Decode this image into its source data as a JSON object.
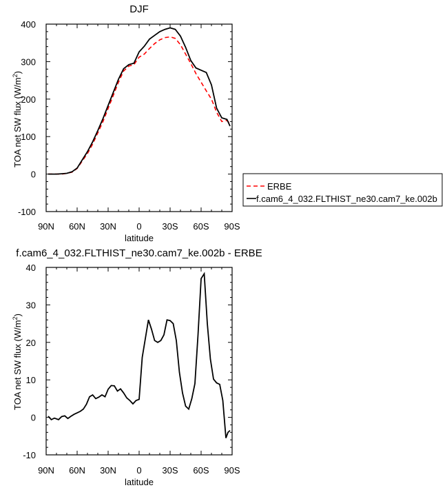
{
  "chart_data": [
    {
      "type": "line",
      "title": "DJF",
      "xlabel": "latitude",
      "ylabel": "TOA net SW flux (W/m",
      "ylabel_superscript": "2",
      "ylabel_close": ")",
      "x_tick_labels": [
        "90N",
        "60N",
        "30N",
        "0",
        "30S",
        "60S",
        "90S"
      ],
      "x_tick_values": [
        -90,
        -60,
        -30,
        0,
        30,
        60,
        90
      ],
      "xlim": [
        -90,
        90
      ],
      "y_tick_labels": [
        "-100",
        "0",
        "100",
        "200",
        "300",
        "400"
      ],
      "y_tick_values": [
        -100,
        0,
        100,
        200,
        300,
        400
      ],
      "ylim": [
        -100,
        400
      ],
      "grid": false,
      "legend_placement": "right",
      "series": [
        {
          "name": "ERBE",
          "color": "#ff0000",
          "dash": true,
          "x": [
            -88,
            -85,
            -80,
            -75,
            -70,
            -65,
            -60,
            -55,
            -50,
            -45,
            -40,
            -35,
            -30,
            -25,
            -20,
            -15,
            -10,
            -5,
            0,
            5,
            10,
            15,
            20,
            25,
            30,
            35,
            40,
            45,
            50,
            55,
            60,
            65,
            70,
            75,
            80,
            85,
            88
          ],
          "values": [
            0,
            0,
            0,
            0,
            2,
            5,
            15,
            35,
            55,
            80,
            110,
            140,
            175,
            210,
            245,
            275,
            288,
            292,
            312,
            320,
            335,
            348,
            358,
            364,
            366,
            362,
            345,
            320,
            295,
            268,
            245,
            222,
            200,
            165,
            140,
            143,
            135
          ]
        },
        {
          "name": "f.cam6_4_032.FLTHIST_ne30.cam7_ke.002b",
          "color": "#000000",
          "dash": false,
          "x": [
            -88,
            -85,
            -80,
            -75,
            -70,
            -65,
            -60,
            -55,
            -50,
            -45,
            -40,
            -35,
            -30,
            -25,
            -20,
            -15,
            -10,
            -5,
            0,
            5,
            10,
            15,
            20,
            25,
            30,
            35,
            40,
            45,
            50,
            55,
            60,
            65,
            70,
            75,
            80,
            85,
            88
          ],
          "values": [
            0,
            0,
            0,
            1,
            2,
            6,
            16,
            38,
            60,
            86,
            116,
            148,
            183,
            218,
            253,
            281,
            292,
            296,
            326,
            341,
            360,
            370,
            380,
            386,
            390,
            386,
            368,
            338,
            303,
            283,
            277,
            271,
            238,
            176,
            150,
            146,
            128
          ]
        }
      ]
    },
    {
      "type": "line",
      "title": "f.cam6_4_032.FLTHIST_ne30.cam7_ke.002b - ERBE",
      "xlabel": "latitude",
      "ylabel": "TOA net SW flux (W/m",
      "ylabel_superscript": "2",
      "ylabel_close": ")",
      "x_tick_labels": [
        "90N",
        "60N",
        "30N",
        "0",
        "30S",
        "60S",
        "90S"
      ],
      "x_tick_values": [
        -90,
        -60,
        -30,
        0,
        30,
        60,
        90
      ],
      "xlim": [
        -90,
        90
      ],
      "y_tick_labels": [
        "-10",
        "0",
        "10",
        "20",
        "30",
        "40"
      ],
      "y_tick_values": [
        -10,
        0,
        10,
        20,
        30,
        40
      ],
      "ylim": [
        -10,
        40
      ],
      "grid": false,
      "series": [
        {
          "color": "#000000",
          "x": [
            -88,
            -85,
            -82,
            -78,
            -75,
            -72,
            -69,
            -66,
            -63,
            -60,
            -57,
            -54,
            -51,
            -48,
            -45,
            -42,
            -39,
            -36,
            -33,
            -30,
            -27,
            -24,
            -21,
            -18,
            -15,
            -12,
            -9,
            -6,
            -3,
            0,
            3,
            6,
            9,
            12,
            15,
            18,
            21,
            24,
            27,
            30,
            33,
            36,
            39,
            42,
            45,
            48,
            51,
            54,
            57,
            60,
            63,
            66,
            69,
            72,
            75,
            78,
            81,
            84,
            86,
            88
          ],
          "values": [
            0.3,
            -0.6,
            -0.2,
            -0.6,
            0.2,
            0.4,
            -0.3,
            0.3,
            0.8,
            1.2,
            1.6,
            2.2,
            3.5,
            5.5,
            6.0,
            5.0,
            5.4,
            6.0,
            5.5,
            7.5,
            8.5,
            8.4,
            7.0,
            7.6,
            6.5,
            5.2,
            4.5,
            3.6,
            4.5,
            4.8,
            16.0,
            21.0,
            26.0,
            23.5,
            20.5,
            20.0,
            20.5,
            22.0,
            26.0,
            25.8,
            25.0,
            20.5,
            12.0,
            6.5,
            3.0,
            2.2,
            5.0,
            9.0,
            22.0,
            37.0,
            38.3,
            25.0,
            15.5,
            10.2,
            9.2,
            8.8,
            4.5,
            -5.5,
            -4.0,
            -3.5
          ]
        }
      ]
    }
  ]
}
